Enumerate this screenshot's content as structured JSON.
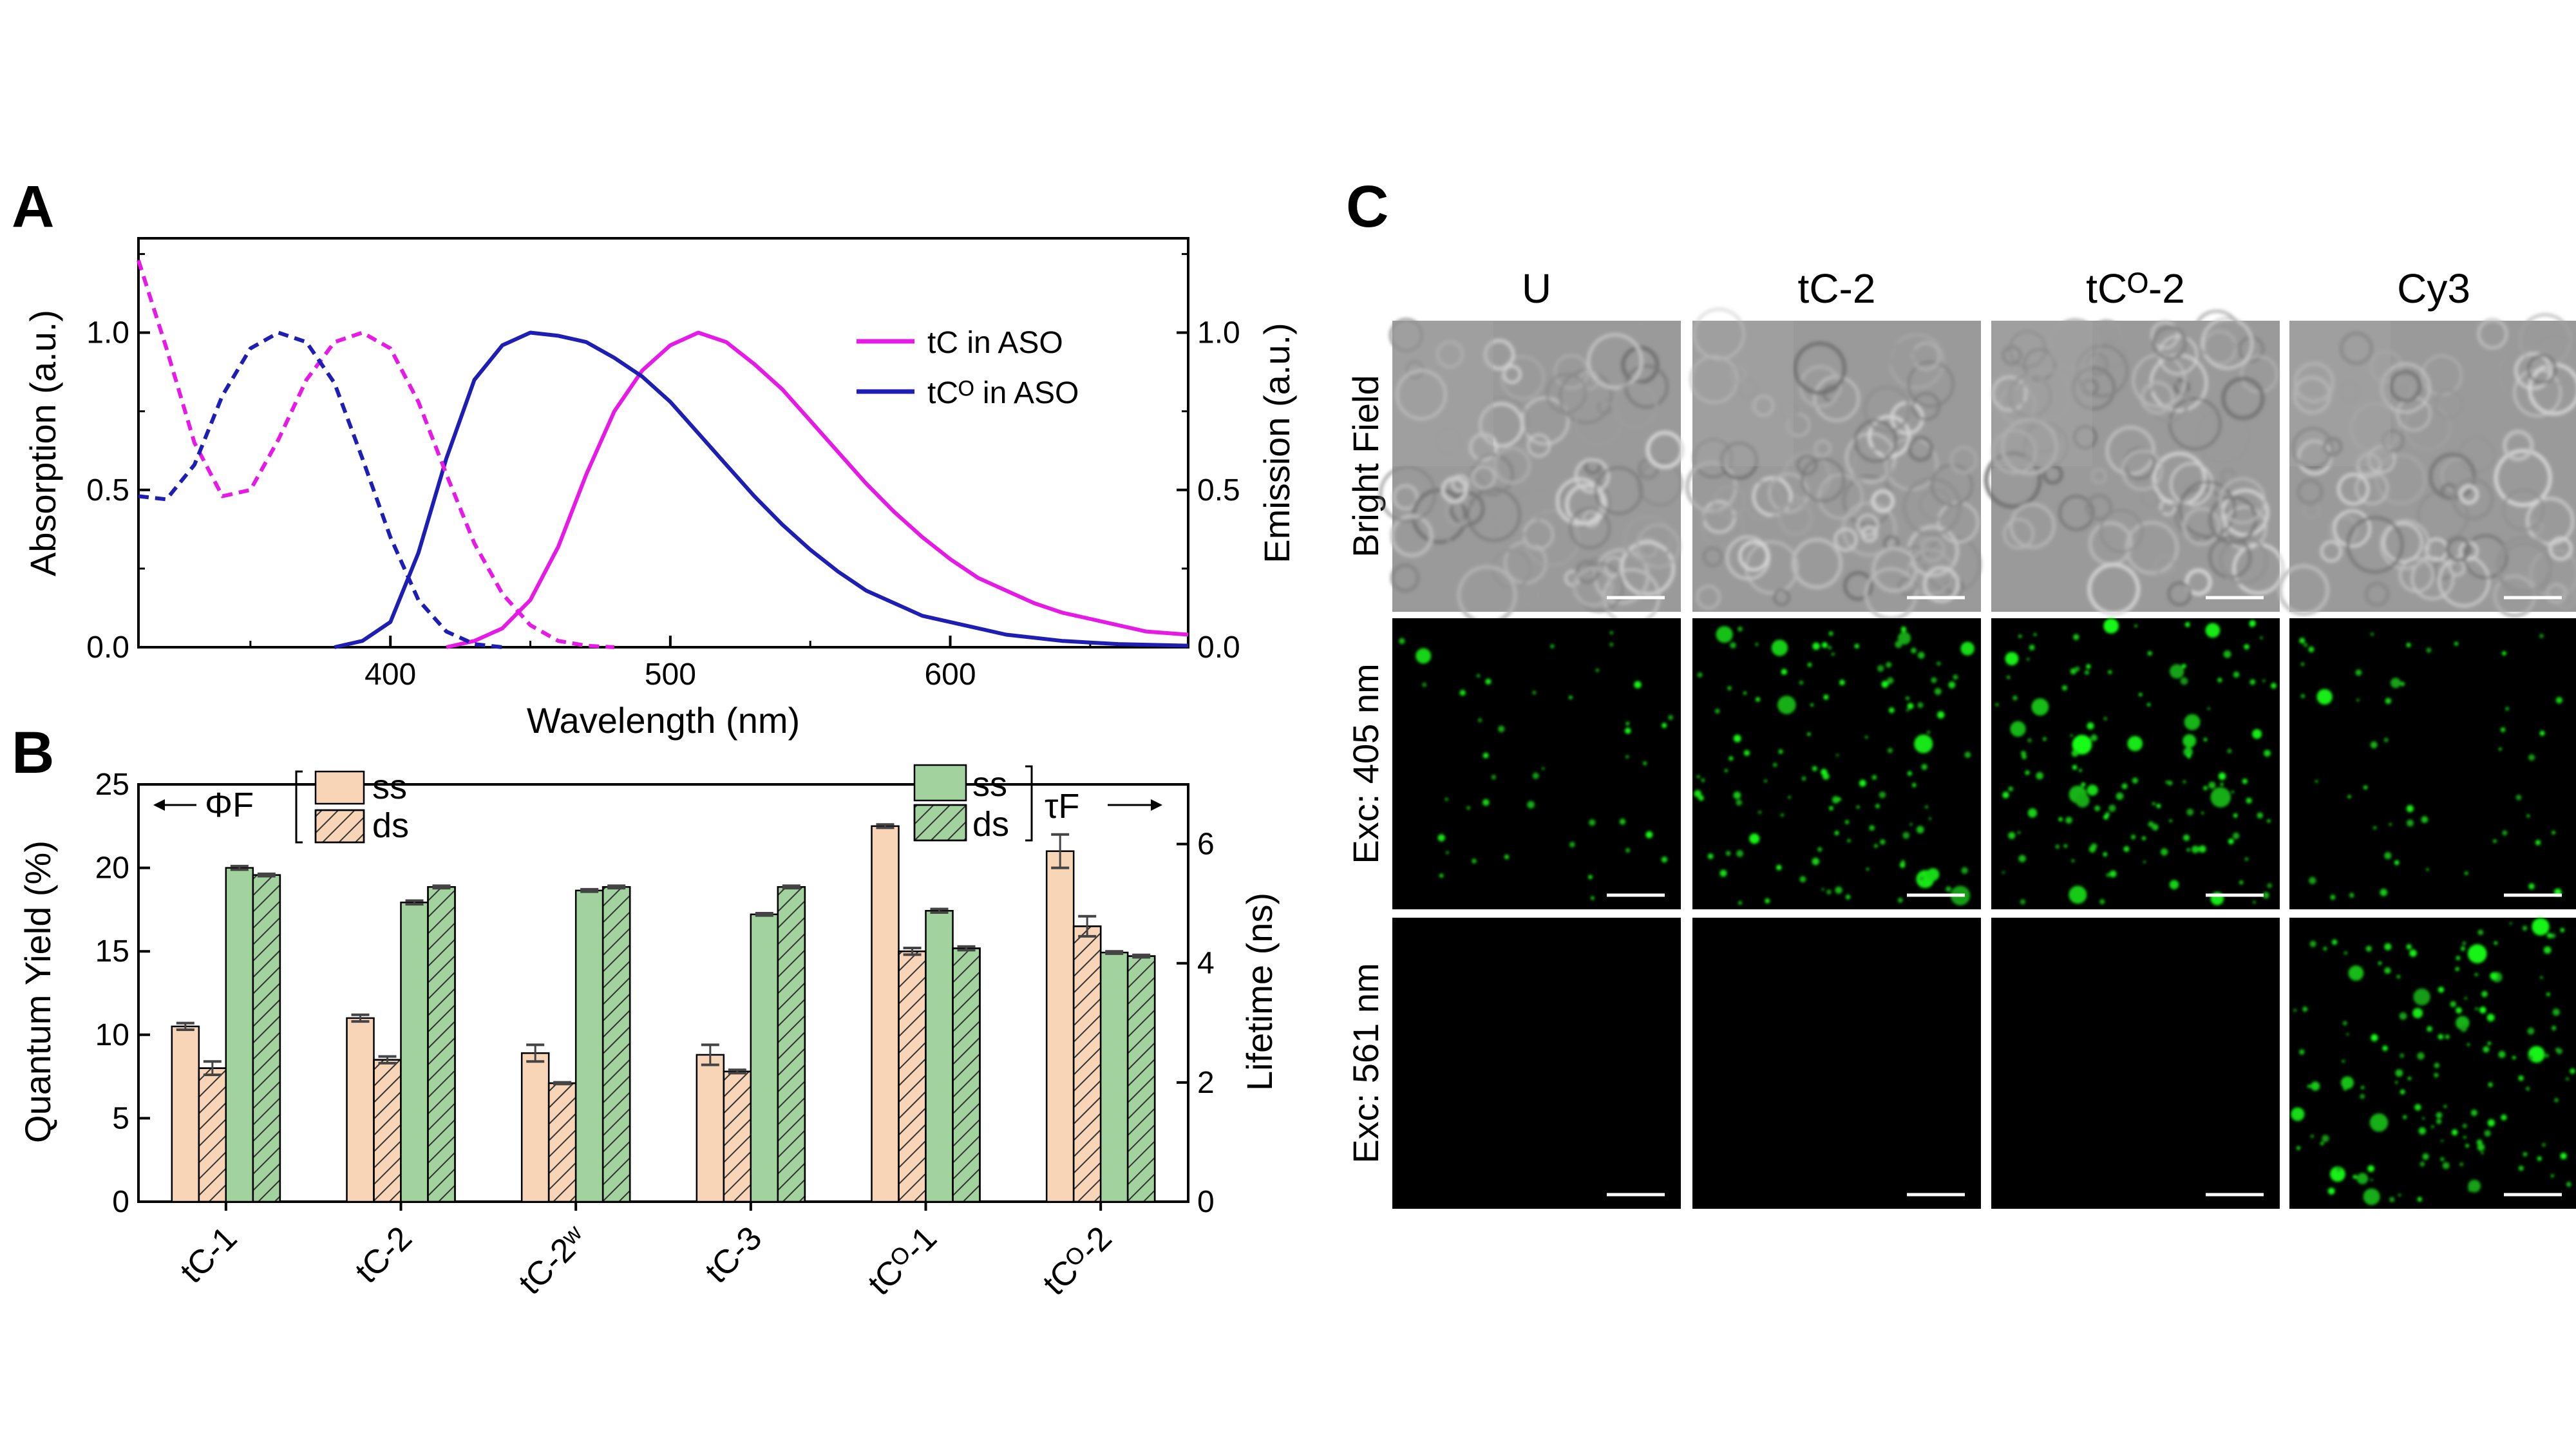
{
  "panels": {
    "A": {
      "letter": "A",
      "chart_data": {
        "type": "line",
        "xlabel": "Wavelength (nm)",
        "ylabel_left": "Absorption (a.u.)",
        "ylabel_right": "Emission (a.u.)",
        "xlim": [
          310,
          685
        ],
        "ylim": [
          0,
          1.3
        ],
        "xticks": [
          "400",
          "500",
          "600"
        ],
        "yticks": [
          "0.0",
          "0.5",
          "1.0"
        ],
        "legend_position": "top-right",
        "series": [
          {
            "name": "tC in ASO",
            "color": "#e619e6",
            "style": "solid",
            "kind": "emission",
            "x": [
              420,
              430,
              440,
              450,
              460,
              470,
              480,
              490,
              500,
              510,
              520,
              530,
              540,
              550,
              560,
              570,
              580,
              590,
              600,
              610,
              620,
              630,
              640,
              650,
              660,
              670,
              685
            ],
            "y": [
              0.0,
              0.02,
              0.06,
              0.15,
              0.32,
              0.55,
              0.75,
              0.88,
              0.96,
              1.0,
              0.97,
              0.9,
              0.82,
              0.72,
              0.62,
              0.52,
              0.43,
              0.35,
              0.28,
              0.22,
              0.18,
              0.14,
              0.11,
              0.09,
              0.07,
              0.05,
              0.04
            ]
          },
          {
            "name": "tCᴼ in ASO",
            "color": "#1e1eb4",
            "style": "solid",
            "kind": "emission",
            "x": [
              380,
              390,
              400,
              410,
              420,
              430,
              440,
              450,
              460,
              470,
              480,
              490,
              500,
              510,
              520,
              530,
              540,
              550,
              560,
              570,
              580,
              590,
              600,
              610,
              620,
              630,
              640,
              650,
              660,
              670,
              685
            ],
            "y": [
              0.0,
              0.02,
              0.08,
              0.3,
              0.6,
              0.85,
              0.96,
              1.0,
              0.99,
              0.97,
              0.92,
              0.86,
              0.78,
              0.68,
              0.58,
              0.48,
              0.39,
              0.31,
              0.24,
              0.18,
              0.14,
              0.1,
              0.08,
              0.06,
              0.04,
              0.03,
              0.02,
              0.015,
              0.01,
              0.008,
              0.005
            ]
          },
          {
            "name": "",
            "color": "#e619e6",
            "style": "dashed",
            "kind": "absorption",
            "x": [
              310,
              320,
              330,
              340,
              350,
              360,
              370,
              380,
              390,
              400,
              410,
              420,
              430,
              440,
              450,
              460,
              470,
              480
            ],
            "y": [
              1.23,
              0.95,
              0.65,
              0.48,
              0.5,
              0.66,
              0.85,
              0.97,
              1.0,
              0.95,
              0.78,
              0.55,
              0.33,
              0.17,
              0.07,
              0.02,
              0.005,
              0.0
            ]
          },
          {
            "name": "",
            "color": "#1e1eb4",
            "style": "dashed",
            "kind": "absorption",
            "x": [
              310,
              320,
              330,
              340,
              350,
              360,
              370,
              380,
              390,
              400,
              410,
              420,
              430,
              440
            ],
            "y": [
              0.48,
              0.47,
              0.58,
              0.8,
              0.95,
              1.0,
              0.97,
              0.84,
              0.6,
              0.35,
              0.15,
              0.05,
              0.01,
              0.0
            ]
          }
        ]
      }
    },
    "B": {
      "letter": "B",
      "chart_data": {
        "type": "bar",
        "categories": [
          "tC-1",
          "tC-2",
          "tC-2ʷ",
          "tC-3",
          "tCᴼ-1",
          "tCᴼ-2"
        ],
        "ylabel_left": "Quantum Yield (%)",
        "ylabel_right": "Lifetime (ns)",
        "ylim_left": [
          0,
          25
        ],
        "ylim_right": [
          0,
          7
        ],
        "yticks_left": [
          "0",
          "5",
          "10",
          "15",
          "20",
          "25"
        ],
        "yticks_right": [
          "0",
          "2",
          "4",
          "6"
        ],
        "left_axis_label": "ΦF",
        "right_axis_label": "τF",
        "legend_left": [
          "ss",
          "ds"
        ],
        "legend_right": [
          "ss",
          "ds"
        ],
        "series": [
          {
            "name": "ss",
            "axis": "left",
            "color": "#f9d5b8",
            "hatched": false,
            "values": [
              10.5,
              11.0,
              8.9,
              8.8,
              22.5,
              21.0
            ],
            "errors": [
              0.2,
              0.2,
              0.5,
              0.6,
              0.1,
              1.0
            ]
          },
          {
            "name": "ds",
            "axis": "left",
            "color": "#f9d5b8",
            "hatched": true,
            "values": [
              8.0,
              8.5,
              7.1,
              7.8,
              15.0,
              16.5
            ],
            "errors": [
              0.4,
              0.2,
              0.05,
              0.1,
              0.2,
              0.6
            ]
          },
          {
            "name": "ss",
            "axis": "right",
            "color": "#a2d39e",
            "hatched": false,
            "values": [
              5.6,
              5.02,
              5.22,
              4.82,
              4.88,
              4.18
            ],
            "errors": [
              0.03,
              0.03,
              0.02,
              0.02,
              0.03,
              0.02
            ]
          },
          {
            "name": "ds",
            "axis": "right",
            "color": "#a2d39e",
            "hatched": true,
            "values": [
              5.48,
              5.28,
              5.28,
              5.28,
              4.25,
              4.12
            ],
            "errors": [
              0.02,
              0.02,
              0.02,
              0.02,
              0.03,
              0.02
            ]
          }
        ]
      }
    },
    "C": {
      "letter": "C",
      "columns": [
        "U",
        "tC-2",
        "tCᴼ-2",
        "Cy3"
      ],
      "rows": [
        "Bright Field",
        "Exc: 405 nm",
        "Exc: 561 nm"
      ],
      "green_signal": {
        "Exc: 405 nm": [
          0.3,
          0.85,
          0.95,
          0.35
        ],
        "Exc: 561 nm": [
          0.0,
          0.0,
          0.0,
          1.0
        ]
      }
    }
  }
}
